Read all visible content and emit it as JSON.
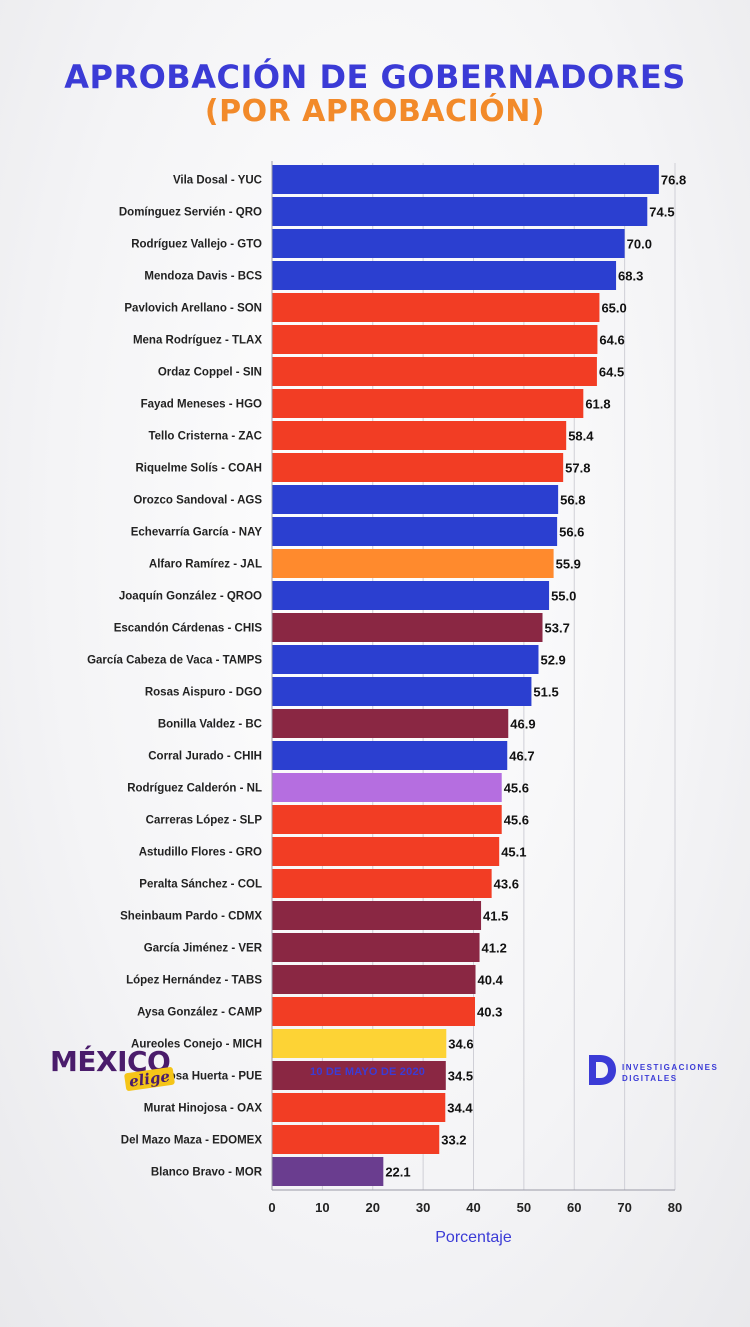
{
  "header": {
    "title": "APROBACIÓN DE GOBERNADORES",
    "subtitle": "(POR APROBACIÓN)"
  },
  "footer": {
    "logo_main": "MÉXICO",
    "logo_sub": "elige",
    "date": "10 DE MAYO DE 2020",
    "brand_line1": "INVESTIGACIONES",
    "brand_line2": "DIGITALES"
  },
  "colors": {
    "title": "#3b3bd6",
    "subtitle": "#f28a2a",
    "blue": "#2b3fd0",
    "red": "#f23d24",
    "orange": "#ff8a2d",
    "maroon": "#8a2743",
    "violet": "#b56ee0",
    "yellow": "#fdd335",
    "purple": "#6a3d8f"
  },
  "chart_data": {
    "type": "bar",
    "orientation": "horizontal",
    "xlabel": "Porcentaje",
    "xlim": [
      0,
      80
    ],
    "xticks": [
      0,
      10,
      20,
      30,
      40,
      50,
      60,
      70,
      80
    ],
    "grid": true,
    "categories": [
      "Vila Dosal - YUC",
      "Domínguez Servién - QRO",
      "Rodríguez Vallejo - GTO",
      "Mendoza Davis - BCS",
      "Pavlovich Arellano - SON",
      "Mena Rodríguez - TLAX",
      "Ordaz Coppel - SIN",
      "Fayad Meneses - HGO",
      "Tello Cristerna - ZAC",
      "Riquelme Solís - COAH",
      "Orozco Sandoval - AGS",
      "Echevarría García - NAY",
      "Alfaro Ramírez - JAL",
      "Joaquín González - QROO",
      "Escandón Cárdenas - CHIS",
      "García Cabeza de Vaca - TAMPS",
      "Rosas Aispuro - DGO",
      "Bonilla Valdez - BC",
      "Corral Jurado - CHIH",
      "Rodríguez Calderón - NL",
      "Carreras López - SLP",
      "Astudillo Flores - GRO",
      "Peralta Sánchez - COL",
      "Sheinbaum Pardo - CDMX",
      "García Jiménez - VER",
      "López Hernández - TABS",
      "Aysa González - CAMP",
      "Aureoles Conejo - MICH",
      "Barbosa Huerta - PUE",
      "Murat Hinojosa - OAX",
      "Del Mazo Maza - EDOMEX",
      "Blanco Bravo - MOR"
    ],
    "values": [
      76.8,
      74.5,
      70.0,
      68.3,
      65.0,
      64.6,
      64.5,
      61.8,
      58.4,
      57.8,
      56.8,
      56.6,
      55.9,
      55.0,
      53.7,
      52.9,
      51.5,
      46.9,
      46.7,
      45.6,
      45.6,
      45.1,
      43.6,
      41.5,
      41.2,
      40.4,
      40.3,
      34.6,
      34.5,
      34.4,
      33.2,
      22.1
    ],
    "value_labels": [
      "76.8",
      "74.5",
      "70.0",
      "68.3",
      "65.0",
      "64.6",
      "64.5",
      "61.8",
      "58.4",
      "57.8",
      "56.8",
      "56.6",
      "55.9",
      "55.0",
      "53.7",
      "52.9",
      "51.5",
      "46.9",
      "46.7",
      "45.6",
      "45.6",
      "45.1",
      "43.6",
      "41.5",
      "41.2",
      "40.4",
      "40.3",
      "34.6",
      "34.5",
      "34.4",
      "33.2",
      "22.1"
    ],
    "bar_colors": [
      "blue",
      "blue",
      "blue",
      "blue",
      "red",
      "red",
      "red",
      "red",
      "red",
      "red",
      "blue",
      "blue",
      "orange",
      "blue",
      "maroon",
      "blue",
      "blue",
      "maroon",
      "blue",
      "violet",
      "red",
      "red",
      "red",
      "maroon",
      "maroon",
      "maroon",
      "red",
      "yellow",
      "maroon",
      "red",
      "red",
      "purple"
    ]
  }
}
